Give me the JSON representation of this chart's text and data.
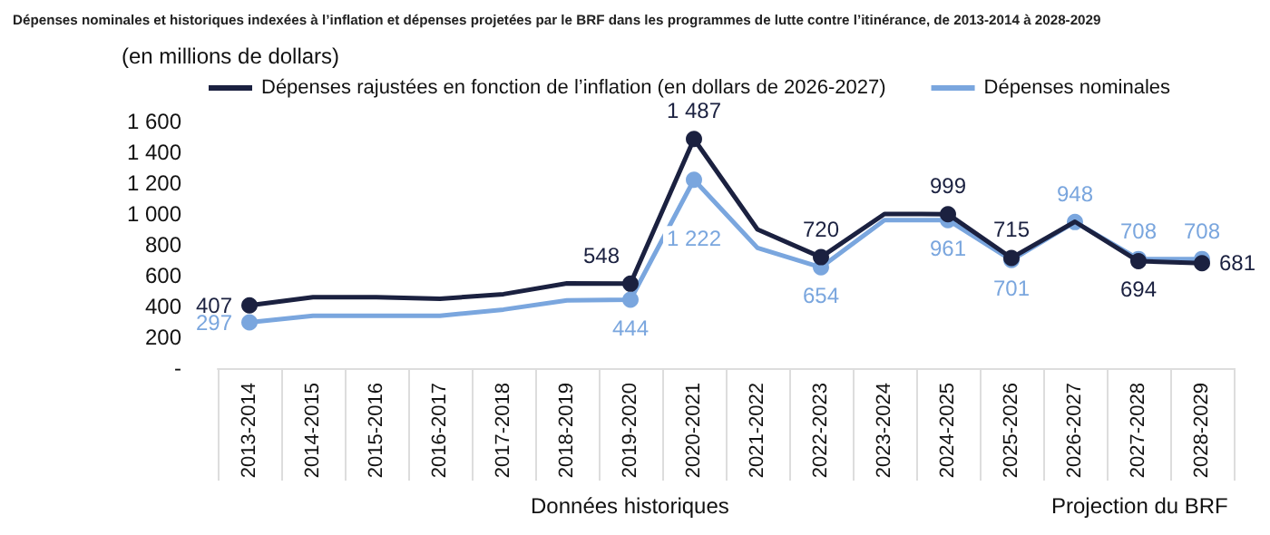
{
  "chart_data": {
    "type": "line",
    "title": "Dépenses nominales et historiques indexées à l’inflation et dépenses projetées par le BRF dans les programmes de lutte contre l’itinérance, de 2013-2014 à 2028-2029",
    "ylabel": "(en millions de dollars)",
    "categories": [
      "2013-2014",
      "2014-2015",
      "2015-2016",
      "2016-2017",
      "2017-2018",
      "2018-2019",
      "2019-2020",
      "2020-2021",
      "2021-2022",
      "2022-2023",
      "2023-2024",
      "2024-2025",
      "2025-2026",
      "2026-2027",
      "2027-2028",
      "2028-2029"
    ],
    "series": [
      {
        "name": "Dépenses rajustées en fonction de l’inflation (en dollars de 2026-2027)",
        "color": "#1b2140",
        "values": [
          407,
          460,
          460,
          450,
          480,
          550,
          548,
          1487,
          900,
          720,
          1000,
          999,
          715,
          950,
          694,
          681
        ],
        "value_labels": [
          "407",
          null,
          null,
          null,
          null,
          null,
          "548",
          "1 487",
          null,
          "720",
          null,
          "999",
          "715",
          null,
          "694",
          "681"
        ]
      },
      {
        "name": "Dépenses nominales",
        "color": "#7aa6de",
        "values": [
          297,
          340,
          340,
          340,
          380,
          440,
          444,
          1222,
          780,
          654,
          960,
          961,
          701,
          948,
          708,
          708
        ],
        "value_labels": [
          "297",
          null,
          null,
          null,
          null,
          null,
          "444",
          "1 222",
          null,
          "654",
          null,
          "961",
          "701",
          "948",
          "708",
          "708"
        ]
      }
    ],
    "ylim": [
      0,
      1600
    ],
    "yticks": [
      {
        "value": 0,
        "label": "-"
      },
      {
        "value": 200,
        "label": "200"
      },
      {
        "value": 400,
        "label": "400"
      },
      {
        "value": 600,
        "label": "600"
      },
      {
        "value": 800,
        "label": "800"
      },
      {
        "value": 1000,
        "label": "1 000"
      },
      {
        "value": 1200,
        "label": "1 200"
      },
      {
        "value": 1400,
        "label": "1 400"
      },
      {
        "value": 1600,
        "label": "1 600"
      }
    ],
    "legend": "top",
    "marker": "circle",
    "line_style": "solid",
    "annotations": [
      "Données historiques",
      "Projection du BRF"
    ]
  }
}
